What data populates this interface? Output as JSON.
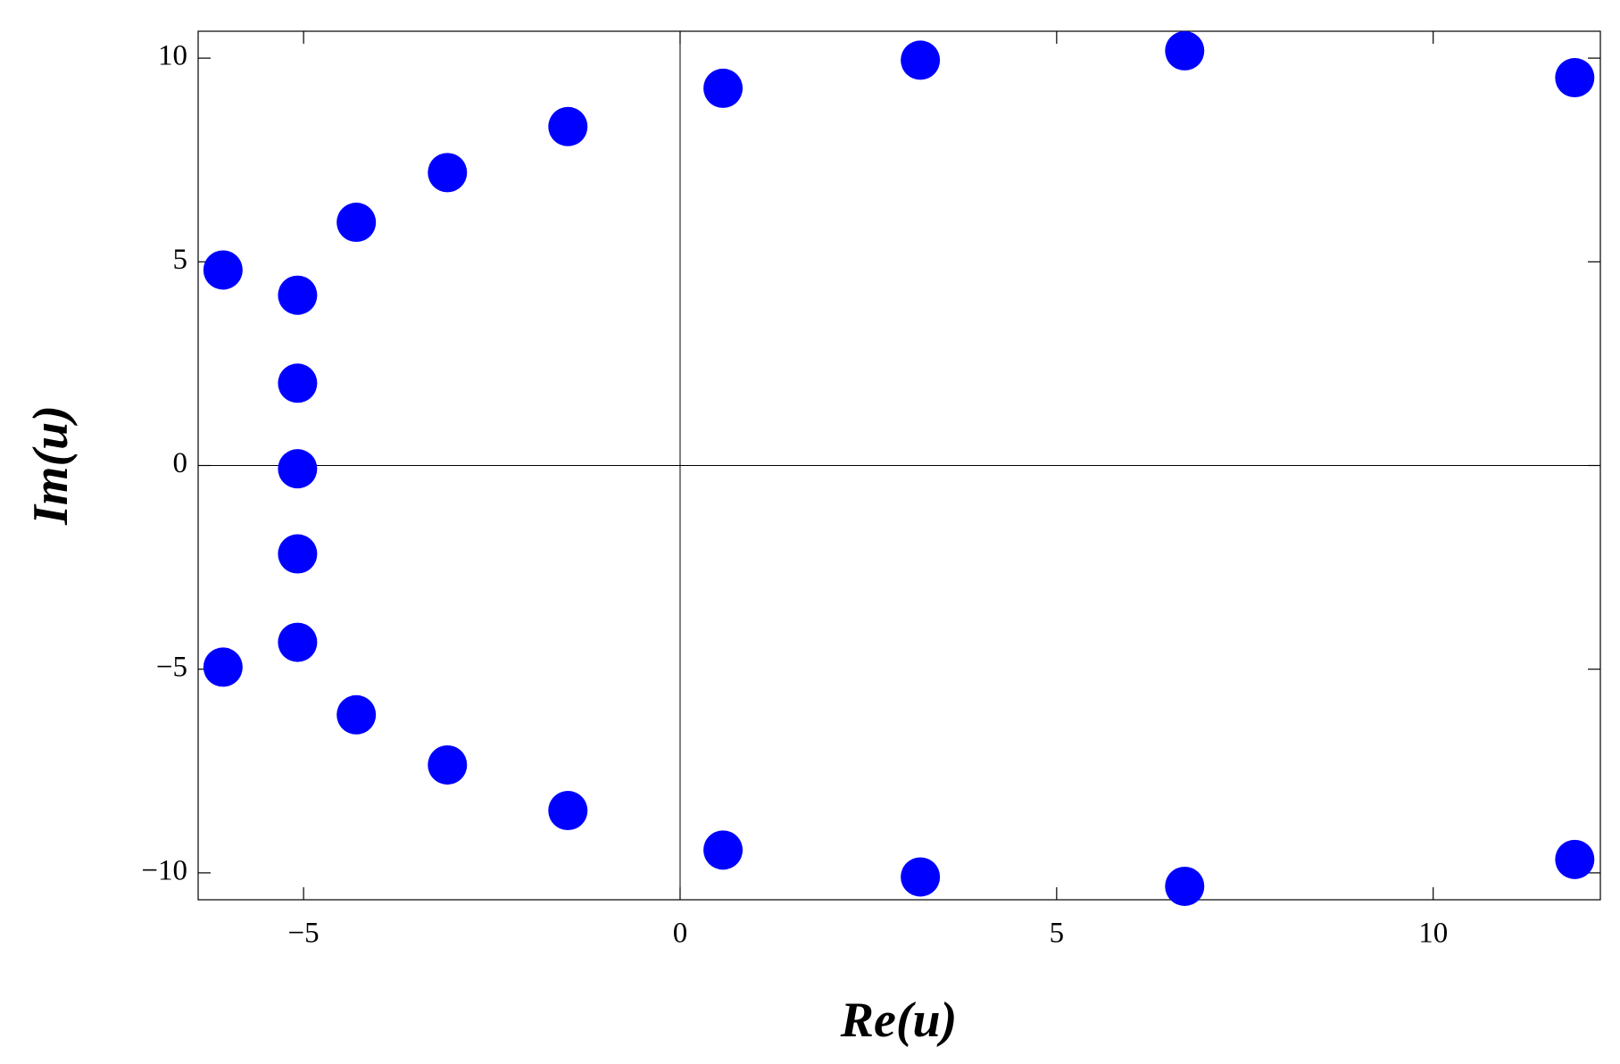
{
  "chart_data": {
    "type": "scatter",
    "x_label": "Re(u)",
    "y_label": "Im(u)",
    "series": [
      {
        "color": "#0000ff",
        "x": [
          -6.07,
          -5.08,
          -5.08,
          -5.08,
          -5.08,
          -5.08,
          -6.07,
          -4.3,
          -3.09,
          -1.49,
          0.57,
          3.19,
          6.7,
          11.88,
          -4.3,
          -3.09,
          -1.49,
          0.57,
          3.19,
          6.7,
          11.88
        ],
        "values": [
          4.8,
          4.18,
          2.02,
          -0.08,
          -2.17,
          -4.34,
          -4.95,
          5.97,
          7.19,
          8.32,
          9.26,
          9.95,
          10.18,
          9.52,
          -6.12,
          -7.35,
          -8.47,
          -9.44,
          -10.1,
          -10.33,
          -9.67
        ]
      }
    ],
    "xlim": [
      -6.4,
      12.22
    ],
    "ylim": [
      -10.66,
      10.66
    ],
    "xticks": [
      {
        "value": -5,
        "label": "−5"
      },
      0,
      5,
      10
    ],
    "yticks": [
      {
        "value": -10,
        "label": "−10"
      },
      {
        "value": -5,
        "label": "−5"
      },
      0,
      5,
      10
    ],
    "zero_axes": true
  }
}
